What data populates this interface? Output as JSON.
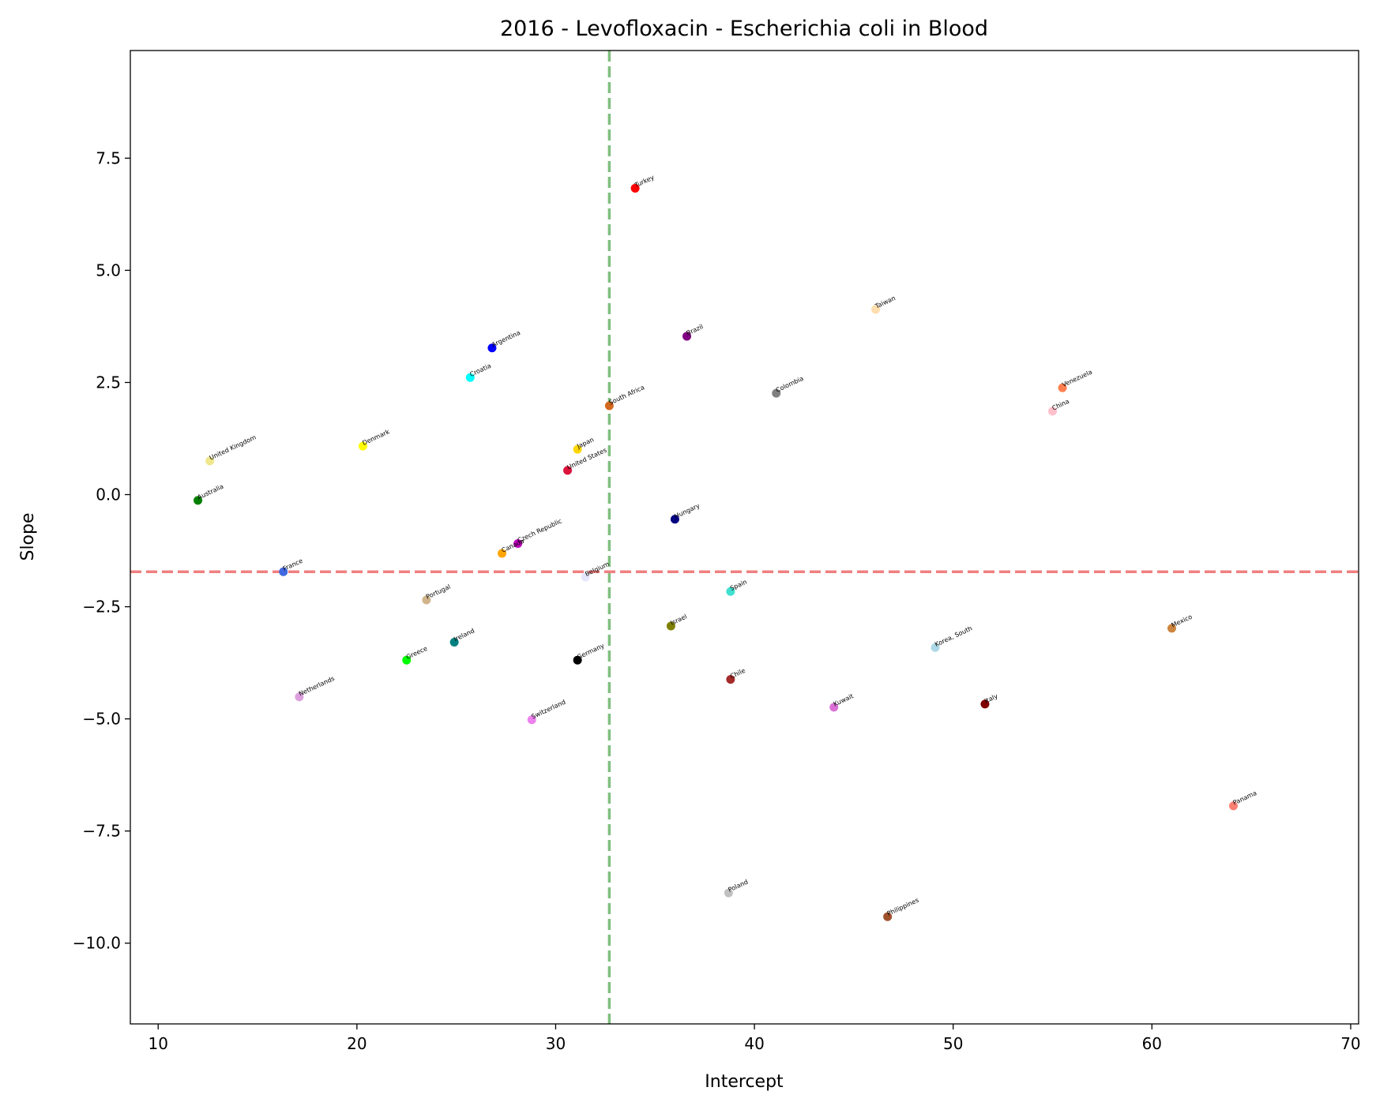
{
  "chart_data": {
    "type": "scatter",
    "title": "2016 - Levofloxacin - Escherichia coli in Blood",
    "xlabel": "Intercept",
    "ylabel": "Slope",
    "xlim": [
      8.6,
      70.4
    ],
    "ylim": [
      -11.8,
      9.9
    ],
    "xticks": [
      10,
      20,
      30,
      40,
      50,
      60,
      70
    ],
    "xtick_labels": [
      "10",
      "20",
      "30",
      "40",
      "50",
      "60",
      "70"
    ],
    "yticks": [
      7.5,
      5.0,
      2.5,
      0.0,
      -2.5,
      -5.0,
      -7.5,
      -10.0
    ],
    "ytick_labels": [
      "7.5",
      "5.0",
      "2.5",
      "0.0",
      "−2.5",
      "−5.0",
      "−7.5",
      "−10.0"
    ],
    "grid": false,
    "reference_lines": {
      "vertical_x": 32.7,
      "vertical_color": "#7fbf7f",
      "horizontal_y": -1.72,
      "horizontal_color": "#f08080"
    },
    "points": [
      {
        "label": "Turkey",
        "x": 34.0,
        "y": 6.83,
        "color": "#ff0000"
      },
      {
        "label": "Taiwan",
        "x": 46.1,
        "y": 4.13,
        "color": "#ffdead"
      },
      {
        "label": "Brazil",
        "x": 36.6,
        "y": 3.53,
        "color": "#800080"
      },
      {
        "label": "Argentina",
        "x": 26.8,
        "y": 3.27,
        "color": "#0000ff"
      },
      {
        "label": "Croatia",
        "x": 25.7,
        "y": 2.61,
        "color": "#00ffff"
      },
      {
        "label": "Venezuela",
        "x": 55.5,
        "y": 2.38,
        "color": "#ff7f50"
      },
      {
        "label": "Colombia",
        "x": 41.1,
        "y": 2.26,
        "color": "#808080"
      },
      {
        "label": "South Africa",
        "x": 32.7,
        "y": 1.98,
        "color": "#d2691e"
      },
      {
        "label": "China",
        "x": 55.0,
        "y": 1.86,
        "color": "#ffc0cb"
      },
      {
        "label": "Denmark",
        "x": 20.3,
        "y": 1.08,
        "color": "#ffff00"
      },
      {
        "label": "Japan",
        "x": 31.1,
        "y": 1.01,
        "color": "#ffd700"
      },
      {
        "label": "United Kingdom",
        "x": 12.6,
        "y": 0.75,
        "color": "#f0e68c"
      },
      {
        "label": "United States",
        "x": 30.6,
        "y": 0.54,
        "color": "#dc143c"
      },
      {
        "label": "Australia",
        "x": 12.0,
        "y": -0.13,
        "color": "#008000"
      },
      {
        "label": "Hungary",
        "x": 36.0,
        "y": -0.55,
        "color": "#000080"
      },
      {
        "label": "Czech Republic",
        "x": 28.1,
        "y": -1.09,
        "color": "#c000c0"
      },
      {
        "label": "Canada",
        "x": 27.3,
        "y": -1.31,
        "color": "#ffa500"
      },
      {
        "label": "France",
        "x": 16.3,
        "y": -1.72,
        "color": "#4169e1"
      },
      {
        "label": "Belgium",
        "x": 31.5,
        "y": -1.84,
        "color": "#e6e6fa"
      },
      {
        "label": "Spain",
        "x": 38.8,
        "y": -2.16,
        "color": "#40e0d0"
      },
      {
        "label": "Portugal",
        "x": 23.5,
        "y": -2.35,
        "color": "#d2b48c"
      },
      {
        "label": "Israel",
        "x": 35.8,
        "y": -2.93,
        "color": "#808000"
      },
      {
        "label": "Mexico",
        "x": 61.0,
        "y": -2.98,
        "color": "#cd853f"
      },
      {
        "label": "Ireland",
        "x": 24.9,
        "y": -3.29,
        "color": "#008080"
      },
      {
        "label": "Korea, South",
        "x": 49.1,
        "y": -3.41,
        "color": "#add8e6"
      },
      {
        "label": "Greece",
        "x": 22.5,
        "y": -3.69,
        "color": "#00ff00"
      },
      {
        "label": "Germany",
        "x": 31.1,
        "y": -3.69,
        "color": "#000000"
      },
      {
        "label": "Chile",
        "x": 38.8,
        "y": -4.12,
        "color": "#a52a2a"
      },
      {
        "label": "Netherlands",
        "x": 17.1,
        "y": -4.51,
        "color": "#dda0dd"
      },
      {
        "label": "Italy",
        "x": 51.6,
        "y": -4.67,
        "color": "#800000"
      },
      {
        "label": "Kuwait",
        "x": 44.0,
        "y": -4.74,
        "color": "#da70d6"
      },
      {
        "label": "Switzerland",
        "x": 28.8,
        "y": -5.02,
        "color": "#ee82ee"
      },
      {
        "label": "Panama",
        "x": 64.1,
        "y": -6.94,
        "color": "#fa8072"
      },
      {
        "label": "Poland",
        "x": 38.7,
        "y": -8.88,
        "color": "#c0c0c0"
      },
      {
        "label": "Philippines",
        "x": 46.7,
        "y": -9.41,
        "color": "#a0522d"
      }
    ]
  }
}
